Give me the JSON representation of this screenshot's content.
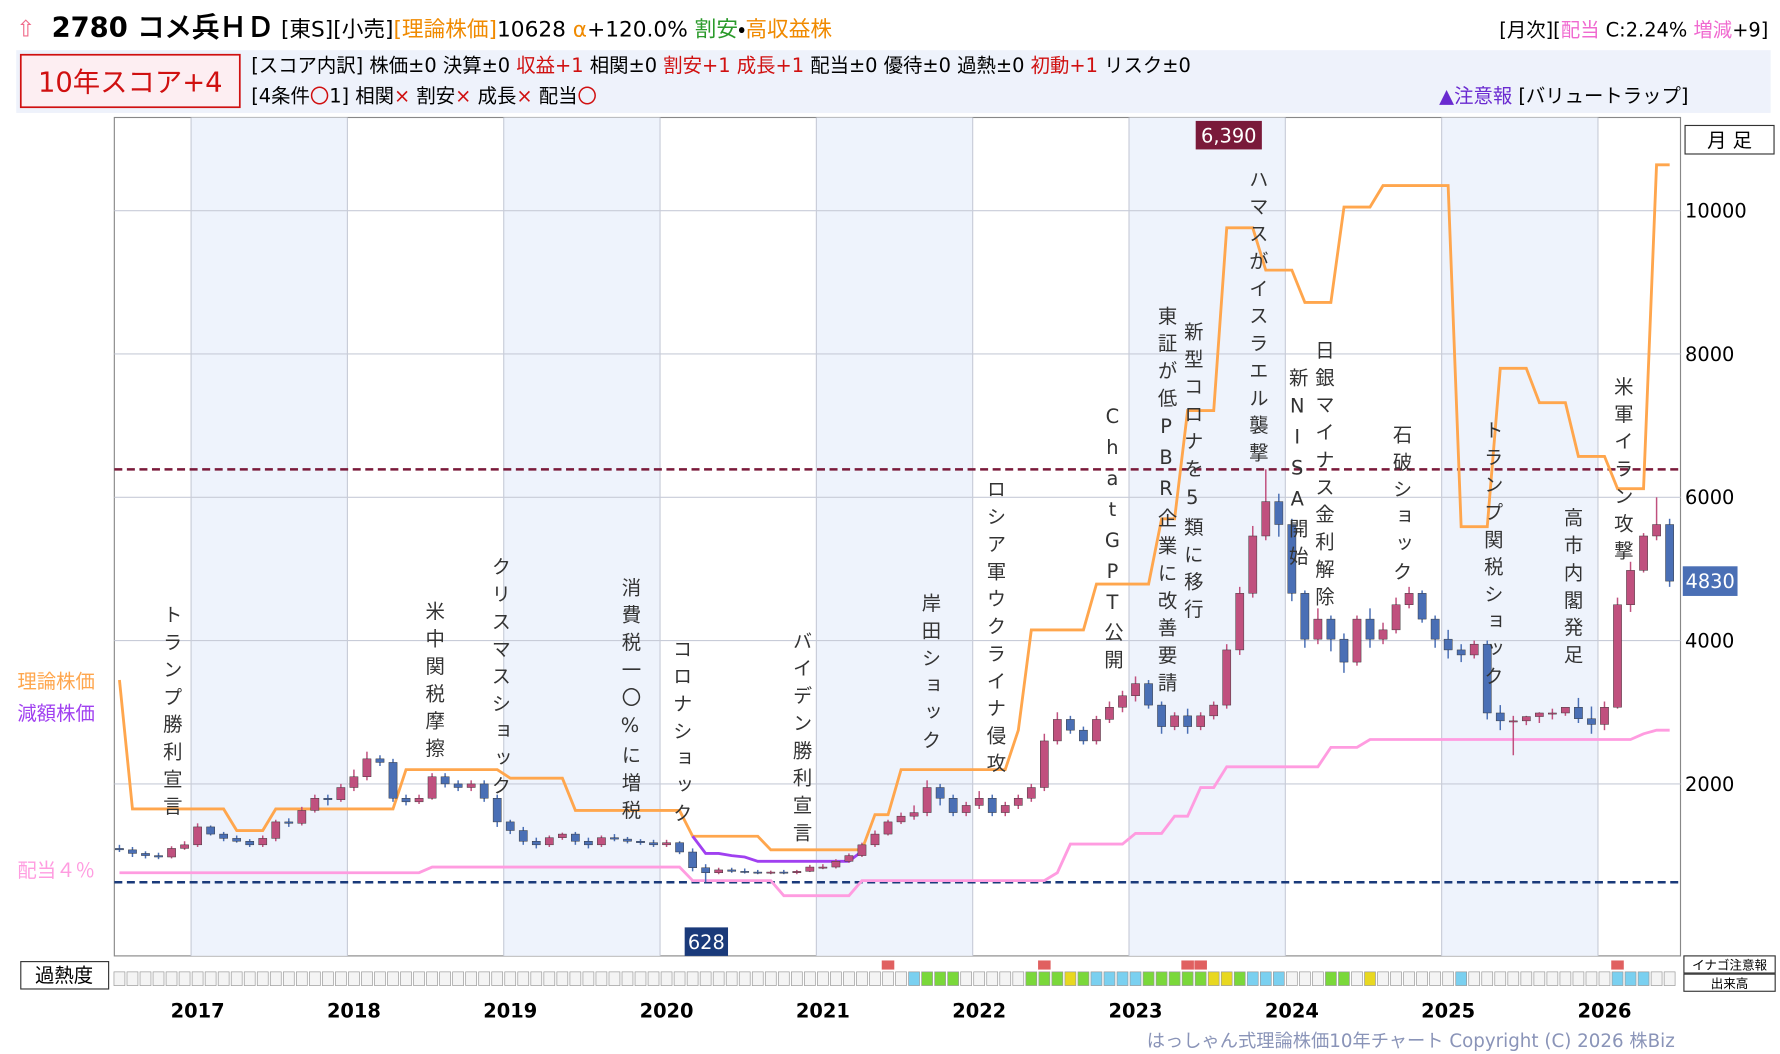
{
  "header": {
    "line1": [
      {
        "text": "2780 コメ兵ＨＤ",
        "color": "#000000"
      },
      {
        "text": " [東S][小売]",
        "color": "#000000"
      },
      {
        "text": "[理論株価]",
        "color": "#f08a00"
      },
      {
        "text": "10628 ",
        "color": "#000000"
      },
      {
        "text": "α",
        "color": "#f08a00"
      },
      {
        "text": "+120.0% ",
        "color": "#000000"
      },
      {
        "text": "割安",
        "color": "#2a9a2a"
      },
      {
        "text": "・",
        "color": "#000000"
      },
      {
        "text": "高収益株",
        "color": "#f08a00"
      }
    ],
    "line1_right": [
      {
        "text": "[月次][",
        "color": "#000000"
      },
      {
        "text": "配当",
        "color": "#f06ad0"
      },
      {
        "text": " C:2.24% ",
        "color": "#000000"
      },
      {
        "text": "増減",
        "color": "#f06ad0"
      },
      {
        "text": "+9]",
        "color": "#000000"
      }
    ],
    "score": "10年スコア+4",
    "line2": [
      {
        "text": "[スコア内訳] 株価±0 決算±0 ",
        "color": "#000000"
      },
      {
        "text": "収益+1",
        "color": "#d01010"
      },
      {
        "text": " 相関±0 ",
        "color": "#000000"
      },
      {
        "text": "割安+1 成長+1",
        "color": "#d01010"
      },
      {
        "text": " 配当±0 優待±0 過熱±0 ",
        "color": "#000000"
      },
      {
        "text": "初動+1",
        "color": "#d01010"
      },
      {
        "text": " リスク±0",
        "color": "#000000"
      }
    ],
    "line3": [
      {
        "text": "[4条件",
        "color": "#000000"
      },
      {
        "text": "〇",
        "color": "#d01010"
      },
      {
        "text": "1] 相関",
        "color": "#000000"
      },
      {
        "text": "×",
        "color": "#d01010"
      },
      {
        "text": " 割安",
        "color": "#000000"
      },
      {
        "text": "×",
        "color": "#d01010"
      },
      {
        "text": " 成長",
        "color": "#000000"
      },
      {
        "text": "×",
        "color": "#d01010"
      },
      {
        "text": " 配当",
        "color": "#000000"
      },
      {
        "text": "〇",
        "color": "#d01010"
      }
    ],
    "line3_right": [
      {
        "text": "▲注意報",
        "color": "#6a2ad0"
      },
      {
        "text": " [バリュートラップ]",
        "color": "#000000"
      }
    ]
  },
  "chart_data": {
    "type": "candlestick",
    "period": "月 足",
    "overheat_label": "過熱度",
    "inago_label": "イナゴ注意報",
    "volume_label": "出来高",
    "copyright": "はっしゃん式理論株価10年チャート Copyright (C) 2026 株Biz",
    "categories": [
      null,
      null,
      null,
      null,
      null,
      null,
      "2017",
      null,
      null,
      null,
      null,
      null,
      null,
      null,
      null,
      null,
      null,
      null,
      "2018",
      null,
      null,
      null,
      null,
      null,
      null,
      null,
      null,
      null,
      null,
      null,
      "2019",
      null,
      null,
      null,
      null,
      null,
      null,
      null,
      null,
      null,
      null,
      null,
      "2020",
      null,
      null,
      null,
      null,
      null,
      null,
      null,
      null,
      null,
      null,
      null,
      "2021",
      null,
      null,
      null,
      null,
      null,
      null,
      null,
      null,
      null,
      null,
      null,
      "2022",
      null,
      null,
      null,
      null,
      null,
      null,
      null,
      null,
      null,
      null,
      null,
      "2023",
      null,
      null,
      null,
      null,
      null,
      null,
      null,
      null,
      null,
      null,
      null,
      "2024",
      null,
      null,
      null,
      null,
      null,
      null,
      null,
      null,
      null,
      null,
      null,
      "2025",
      null,
      null,
      null,
      null,
      null,
      null,
      null,
      null,
      null,
      null,
      null,
      "2026",
      null,
      null,
      null,
      null,
      null
    ],
    "open": [
      1100,
      1080,
      1030,
      1000,
      980,
      1100,
      1150,
      1400,
      1300,
      1240,
      1200,
      1150,
      1240,
      1470,
      1450,
      1630,
      1800,
      1780,
      1950,
      2100,
      2350,
      2300,
      1800,
      1750,
      1800,
      2100,
      2000,
      1950,
      2000,
      1800,
      1470,
      1350,
      1200,
      1150,
      1250,
      1300,
      1200,
      1150,
      1250,
      1230,
      1200,
      1180,
      1150,
      1180,
      1050,
      830,
      760,
      800,
      780,
      770,
      760,
      770,
      760,
      780,
      840,
      840,
      920,
      1000,
      1150,
      1300,
      1470,
      1550,
      1600,
      1950,
      1800,
      1600,
      1700,
      1800,
      1600,
      1700,
      1800,
      1950,
      2600,
      2900,
      2750,
      2600,
      2900,
      3070,
      3230,
      3400,
      3100,
      2800,
      2950,
      2800,
      2950,
      3100,
      3870,
      4660,
      5460,
      5940,
      5620,
      4660,
      4020,
      4300,
      4020,
      3700,
      4300,
      4020,
      4150,
      4500,
      4660,
      4300,
      4020,
      3870,
      3800,
      3950,
      2990,
      2880,
      2880,
      2940,
      2990,
      2990,
      3070,
      2910,
      2830,
      3070,
      4500,
      4980,
      5460,
      5620
    ],
    "high": [
      1150,
      1120,
      1060,
      1040,
      1130,
      1200,
      1450,
      1420,
      1330,
      1280,
      1230,
      1280,
      1500,
      1520,
      1680,
      1850,
      1850,
      2000,
      2200,
      2450,
      2400,
      2350,
      1850,
      1850,
      2150,
      2150,
      2050,
      2050,
      2050,
      1850,
      1500,
      1400,
      1250,
      1280,
      1320,
      1330,
      1250,
      1280,
      1300,
      1260,
      1230,
      1220,
      1220,
      1200,
      1100,
      880,
      830,
      830,
      820,
      800,
      790,
      800,
      800,
      870,
      880,
      950,
      1030,
      1180,
      1350,
      1500,
      1600,
      1700,
      2050,
      2000,
      1850,
      1750,
      1900,
      1850,
      1750,
      1850,
      2000,
      2700,
      3000,
      2950,
      2800,
      2950,
      3150,
      3300,
      3500,
      3450,
      3150,
      3000,
      3050,
      3000,
      3150,
      3950,
      4750,
      5600,
      6390,
      6050,
      5700,
      4700,
      4450,
      4350,
      4100,
      4350,
      4450,
      4250,
      4600,
      4750,
      4700,
      4350,
      4150,
      3950,
      4000,
      4000,
      3100,
      2950,
      2950,
      3000,
      3050,
      3050,
      3200,
      3080,
      3150,
      4600,
      5100,
      5500,
      6000,
      5700
    ],
    "low": [
      1050,
      980,
      960,
      950,
      960,
      1080,
      1120,
      1280,
      1200,
      1180,
      1120,
      1120,
      1200,
      1400,
      1420,
      1600,
      1700,
      1750,
      1900,
      2050,
      2250,
      1750,
      1700,
      1720,
      1780,
      1950,
      1900,
      1900,
      1750,
      1400,
      1300,
      1150,
      1100,
      1120,
      1220,
      1150,
      1100,
      1120,
      1200,
      1170,
      1150,
      1120,
      1120,
      1020,
      780,
      628,
      740,
      760,
      750,
      740,
      740,
      740,
      740,
      770,
      810,
      820,
      900,
      980,
      1120,
      1280,
      1440,
      1500,
      1550,
      1700,
      1550,
      1550,
      1650,
      1550,
      1550,
      1650,
      1750,
      1900,
      2550,
      2700,
      2550,
      2550,
      2850,
      3000,
      3150,
      3050,
      2700,
      2750,
      2700,
      2750,
      2900,
      3050,
      3800,
      4600,
      5400,
      5450,
      4550,
      3900,
      3950,
      3850,
      3550,
      3650,
      3900,
      3950,
      4100,
      4450,
      4250,
      3900,
      3750,
      3700,
      3750,
      2900,
      2750,
      2400,
      2820,
      2850,
      2900,
      2950,
      2850,
      2700,
      2750,
      3050,
      4400,
      4950,
      5400,
      4750
    ],
    "close": [
      1080,
      1030,
      1000,
      980,
      1100,
      1150,
      1400,
      1300,
      1240,
      1200,
      1150,
      1240,
      1470,
      1450,
      1630,
      1800,
      1780,
      1950,
      2100,
      2350,
      2300,
      1800,
      1750,
      1800,
      2100,
      2000,
      1950,
      2000,
      1800,
      1470,
      1350,
      1200,
      1150,
      1250,
      1300,
      1200,
      1150,
      1250,
      1230,
      1200,
      1180,
      1150,
      1180,
      1050,
      830,
      760,
      800,
      780,
      770,
      760,
      770,
      760,
      780,
      840,
      840,
      920,
      1000,
      1150,
      1300,
      1470,
      1550,
      1600,
      1950,
      1800,
      1600,
      1700,
      1800,
      1600,
      1700,
      1800,
      1950,
      2600,
      2900,
      2750,
      2600,
      2900,
      3070,
      3230,
      3400,
      3100,
      2800,
      2950,
      2800,
      2950,
      3100,
      3870,
      4660,
      5460,
      5940,
      5620,
      4660,
      4020,
      4300,
      4020,
      3700,
      4300,
      4020,
      4150,
      4500,
      4660,
      4300,
      4020,
      3870,
      3800,
      3950,
      2990,
      2880,
      2880,
      2940,
      2990,
      2990,
      3070,
      2910,
      2830,
      3070,
      4500,
      4980,
      5460,
      5620,
      4830
    ],
    "up_color": "#c0507e",
    "down_color": "#4a6fb5",
    "series": [
      {
        "name": "理論株価",
        "color": "#ffa64d",
        "values": [
          3450,
          1650,
          1650,
          1650,
          1650,
          1650,
          1650,
          1650,
          1650,
          1350,
          1350,
          1350,
          1650,
          1650,
          1650,
          1650,
          1650,
          1650,
          1650,
          1650,
          1650,
          1650,
          2200,
          2200,
          2200,
          2200,
          2200,
          2200,
          2200,
          2200,
          2080,
          2080,
          2080,
          2080,
          2080,
          1630,
          1630,
          1630,
          1630,
          1630,
          1630,
          1630,
          1630,
          1630,
          1270,
          1270,
          1270,
          1270,
          1270,
          1270,
          1080,
          1080,
          1080,
          1080,
          1080,
          1080,
          1080,
          1080,
          1570,
          1570,
          2200,
          2200,
          2200,
          2200,
          2200,
          2200,
          2200,
          2200,
          2200,
          2750,
          4150,
          4150,
          4150,
          4150,
          4150,
          4790,
          4790,
          4790,
          4790,
          4790,
          5700,
          5700,
          7210,
          7210,
          7210,
          9760,
          9760,
          9760,
          9170,
          9170,
          9170,
          8720,
          8720,
          8720,
          10050,
          10050,
          10050,
          10350,
          10350,
          10350,
          10350,
          10350,
          10350,
          5590,
          5590,
          5590,
          7800,
          7800,
          7800,
          7320,
          7320,
          7320,
          6570,
          6570,
          6570,
          6120,
          6120,
          6120,
          10640,
          10640
        ]
      },
      {
        "name": "減額株価",
        "color": "#a040f0",
        "values": [
          null,
          null,
          null,
          null,
          null,
          null,
          null,
          null,
          null,
          null,
          null,
          null,
          null,
          null,
          null,
          null,
          null,
          null,
          null,
          null,
          null,
          null,
          null,
          null,
          null,
          null,
          null,
          null,
          null,
          null,
          null,
          null,
          null,
          null,
          null,
          null,
          null,
          null,
          null,
          null,
          null,
          null,
          null,
          null,
          1270,
          1030,
          1030,
          1000,
          980,
          920,
          920,
          920,
          920,
          920,
          920,
          920,
          920,
          1060,
          null,
          null,
          null,
          null,
          null,
          null,
          null,
          null,
          null,
          null,
          null,
          null,
          null,
          null,
          null,
          null,
          null,
          null,
          null,
          null,
          null,
          null,
          null,
          null,
          null,
          null,
          null,
          null,
          null,
          null,
          null,
          null,
          null,
          null,
          null,
          null,
          null,
          null,
          null,
          null,
          null,
          null,
          null,
          null,
          null,
          null,
          null,
          null,
          null,
          null,
          null,
          null,
          null,
          null,
          null,
          null,
          null,
          null,
          null,
          null,
          null,
          null
        ]
      },
      {
        "name": "配当４％",
        "color": "#ff9ce0",
        "values": [
          760,
          760,
          760,
          760,
          760,
          760,
          760,
          760,
          760,
          760,
          760,
          760,
          760,
          760,
          760,
          760,
          760,
          760,
          760,
          760,
          760,
          760,
          760,
          760,
          840,
          840,
          840,
          840,
          840,
          840,
          840,
          840,
          840,
          840,
          840,
          840,
          840,
          840,
          840,
          840,
          840,
          840,
          840,
          840,
          650,
          650,
          650,
          650,
          650,
          650,
          650,
          440,
          440,
          440,
          440,
          440,
          440,
          650,
          650,
          650,
          650,
          650,
          650,
          650,
          650,
          650,
          650,
          650,
          650,
          650,
          650,
          650,
          760,
          1160,
          1160,
          1160,
          1160,
          1160,
          1310,
          1310,
          1310,
          1550,
          1550,
          1950,
          1950,
          2240,
          2240,
          2240,
          2240,
          2240,
          2240,
          2240,
          2240,
          2510,
          2510,
          2510,
          2620,
          2620,
          2620,
          2620,
          2620,
          2620,
          2620,
          2620,
          2620,
          2620,
          2620,
          2620,
          2620,
          2620,
          2620,
          2620,
          2620,
          2620,
          2620,
          2620,
          2620,
          2700,
          2750,
          2750
        ]
      }
    ],
    "reference_lines": [
      {
        "value": 6390,
        "label": "6,390",
        "color": "#7a1a3a"
      },
      {
        "value": 628,
        "color": "#1a3a7a"
      }
    ],
    "annotations": [
      "トランプ勝利宣言",
      "米中関税摩擦",
      "クリスマスショック",
      "消費税一〇%に増税",
      "コロナショック",
      "バイデン勝利宣言",
      "岸田ショック",
      "ロシア軍ウクライナ侵攻",
      "ChatGPT公開",
      "東証が低PBR企業に改善要請",
      "新型コロナを5類に移行",
      "ハマスがイスラエル襲撃",
      "新NISA開始",
      "日銀マイナス金利解除",
      "石破ショック",
      "トランプ関税ショック",
      "高市内閣発足",
      "米軍イラン攻撃"
    ],
    "ylim": [
      -400,
      11300
    ],
    "yticks": [
      2000,
      4000,
      6000,
      8000,
      10000
    ],
    "grid": true
  }
}
